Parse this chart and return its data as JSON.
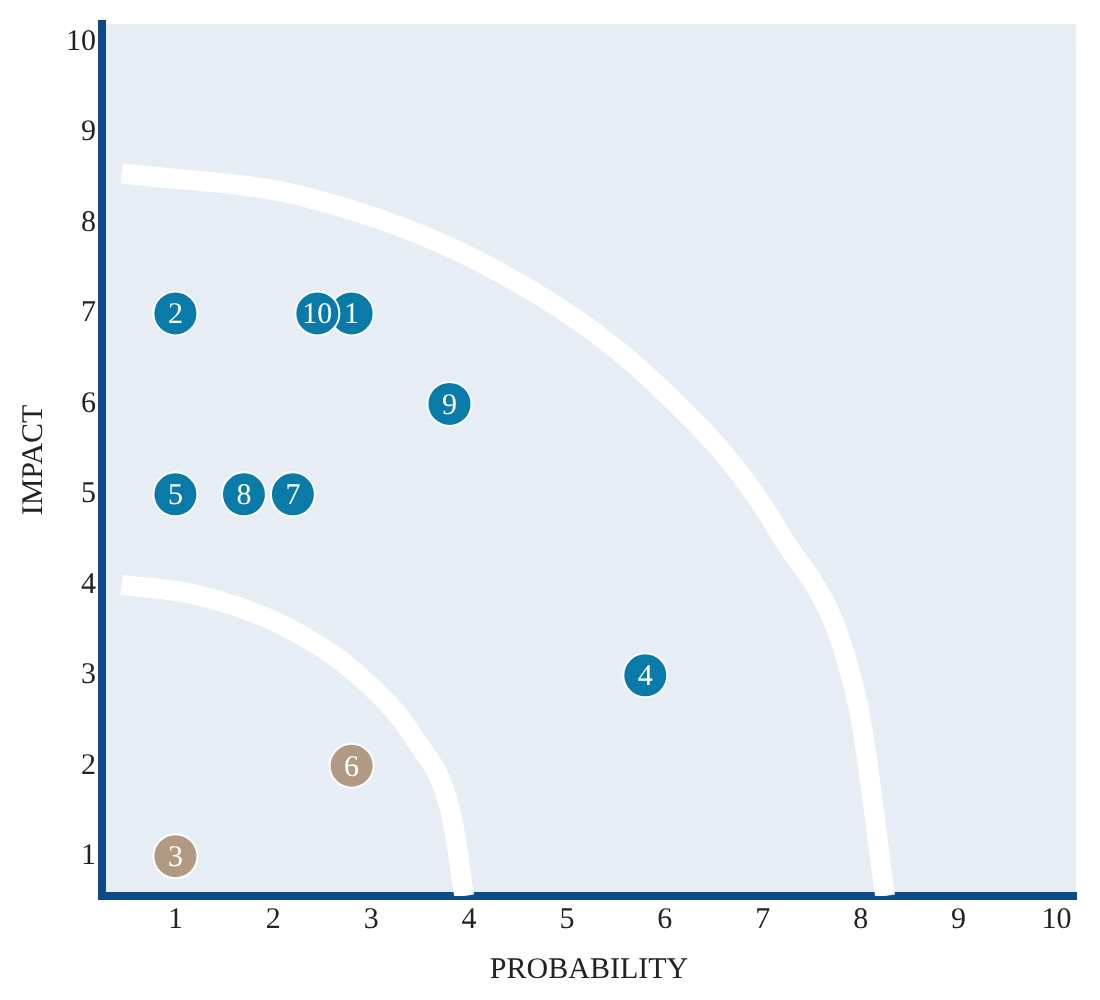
{
  "chart_data": {
    "type": "scatter",
    "xlabel": "PROBABILITY",
    "ylabel": "IMPACT",
    "xlim": [
      0.25,
      10.2
    ],
    "ylim": [
      0.56,
      10.2
    ],
    "xticks": [
      1,
      2,
      3,
      4,
      5,
      6,
      7,
      8,
      9,
      10
    ],
    "yticks": [
      1,
      2,
      3,
      4,
      5,
      6,
      7,
      8,
      9,
      10
    ],
    "grid": false,
    "legend": false,
    "marker": "circle",
    "series": [
      {
        "type": "line",
        "marker": "none",
        "color": "#ffffff",
        "x": [
          0.45,
          2.32,
          4.25,
          5.91,
          7.18,
          7.98,
          8.25
        ],
        "values": [
          8.55,
          8.29,
          7.49,
          6.22,
          4.56,
          2.63,
          0.56
        ]
      },
      {
        "type": "line",
        "marker": "none",
        "color": "#ffffff",
        "x": [
          0.45,
          1.21,
          2.1,
          2.87,
          3.45,
          3.82,
          3.95
        ],
        "values": [
          4.0,
          3.89,
          3.55,
          3.0,
          2.29,
          1.45,
          0.56
        ]
      },
      {
        "x": [
          2.8,
          1,
          1,
          5.8,
          1,
          2.8,
          2.2,
          1.7,
          3.8,
          2.45
        ],
        "values": [
          7,
          7,
          1,
          3,
          5,
          2,
          5,
          5,
          6,
          7
        ],
        "colors": [
          "#0a7aa8",
          "#0a7aa8",
          "#b09a84",
          "#0a7aa8",
          "#0a7aa8",
          "#b09a84",
          "#0a7aa8",
          "#0a7aa8",
          "#0a7aa8",
          "#0a7aa8"
        ]
      }
    ],
    "annotations": [
      {
        "text": "1",
        "x": 2.8,
        "y": 7
      },
      {
        "text": "2",
        "x": 1,
        "y": 7
      },
      {
        "text": "3",
        "x": 1,
        "y": 1
      },
      {
        "text": "4",
        "x": 5.8,
        "y": 3
      },
      {
        "text": "5",
        "x": 1,
        "y": 5
      },
      {
        "text": "6",
        "x": 2.8,
        "y": 2
      },
      {
        "text": "7",
        "x": 2.2,
        "y": 5
      },
      {
        "text": "8",
        "x": 1.7,
        "y": 5
      },
      {
        "text": "9",
        "x": 3.8,
        "y": 6
      },
      {
        "text": "10",
        "x": 2.45,
        "y": 7
      }
    ]
  }
}
